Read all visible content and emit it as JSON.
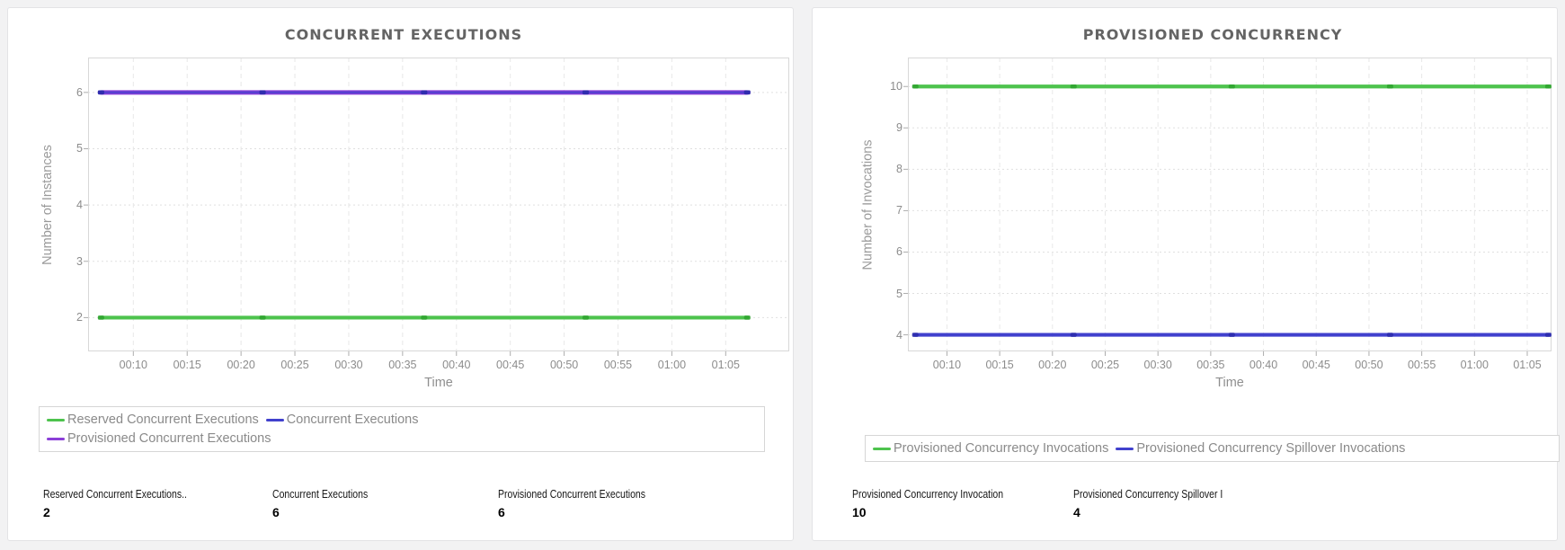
{
  "page": {
    "background": "#f2f2f3",
    "panel_background": "#ffffff"
  },
  "colors": {
    "green_line": "#4dc34d",
    "green_marker": "#2fa52f",
    "blue_line": "#4141cd",
    "blue_marker": "#2c2cae",
    "purple_line": "#8c3fd8",
    "purple_marker": "#5c2bb8",
    "grid_vertical": "#e8e8e8",
    "grid_horizontal": "#e0e0e0",
    "plot_border": "#d8d8d8",
    "axis_text": "#8c8c8c",
    "title_text": "#646464"
  },
  "chart_data": [
    {
      "type": "line",
      "title": "CONCURRENT EXECUTIONS",
      "xlabel": "Time",
      "ylabel": "Number of Instances",
      "x_tick_labels": [
        "00:10",
        "00:15",
        "00:20",
        "00:25",
        "00:30",
        "00:35",
        "00:40",
        "00:45",
        "00:50",
        "00:55",
        "01:00",
        "01:05"
      ],
      "x_tick_minutes": [
        10,
        15,
        20,
        25,
        30,
        35,
        40,
        45,
        50,
        55,
        60,
        65
      ],
      "x_minutes": [
        7,
        22,
        37,
        52,
        67
      ],
      "xlim": [
        5.8,
        70.9
      ],
      "y_ticks": [
        2,
        3,
        4,
        5,
        6
      ],
      "ylim": [
        1.4,
        6.62
      ],
      "grid": true,
      "legend_position": "bottom-left",
      "legend_rows": [
        [
          0,
          1
        ],
        [
          2
        ]
      ],
      "series": [
        {
          "name": "Reserved Concurrent Executions",
          "color": "#4dc34d",
          "marker_color": "#2fa52f",
          "values": [
            2,
            2,
            2,
            2,
            2
          ]
        },
        {
          "name": "Concurrent Executions",
          "color": "#4141cd",
          "marker_color": "#2c2cae",
          "values": [
            6,
            6,
            6,
            6,
            6
          ]
        },
        {
          "name": "Provisioned Concurrent Executions",
          "color": "#8c3fd8",
          "marker_color": "#5c2bb8",
          "values": [
            6,
            6,
            6,
            6,
            6
          ]
        }
      ],
      "stats": [
        {
          "label": "Reserved Concurrent Executions..",
          "value": "2"
        },
        {
          "label": "Concurrent Executions",
          "value": "6"
        },
        {
          "label": "Provisioned Concurrent Executions",
          "value": "6"
        }
      ]
    },
    {
      "type": "line",
      "title": "PROVISIONED CONCURRENCY",
      "xlabel": "Time",
      "ylabel": "Number of Invocations",
      "x_tick_labels": [
        "00:10",
        "00:15",
        "00:20",
        "00:25",
        "00:30",
        "00:35",
        "00:40",
        "00:45",
        "00:50",
        "00:55",
        "01:00",
        "01:05"
      ],
      "x_tick_minutes": [
        10,
        15,
        20,
        25,
        30,
        35,
        40,
        45,
        50,
        55,
        60,
        65
      ],
      "x_minutes": [
        7,
        22,
        37,
        52,
        67
      ],
      "xlim": [
        6.3,
        67.3
      ],
      "y_ticks": [
        4,
        5,
        6,
        7,
        8,
        9,
        10
      ],
      "ylim": [
        3.6,
        10.7
      ],
      "grid": true,
      "legend_position": "bottom-left",
      "legend_rows": [
        [
          0,
          1
        ]
      ],
      "series": [
        {
          "name": "Provisioned Concurrency Invocations",
          "color": "#4dc34d",
          "marker_color": "#2fa52f",
          "values": [
            10,
            10,
            10,
            10,
            10
          ]
        },
        {
          "name": "Provisioned Concurrency Spillover Invocations",
          "color": "#4141cd",
          "marker_color": "#2c2cae",
          "values": [
            4,
            4,
            4,
            4,
            4
          ]
        }
      ],
      "stats": [
        {
          "label": "Provisioned Concurrency Invocation",
          "value": "10"
        },
        {
          "label": "Provisioned Concurrency Spillover I",
          "value": "4"
        }
      ]
    }
  ]
}
